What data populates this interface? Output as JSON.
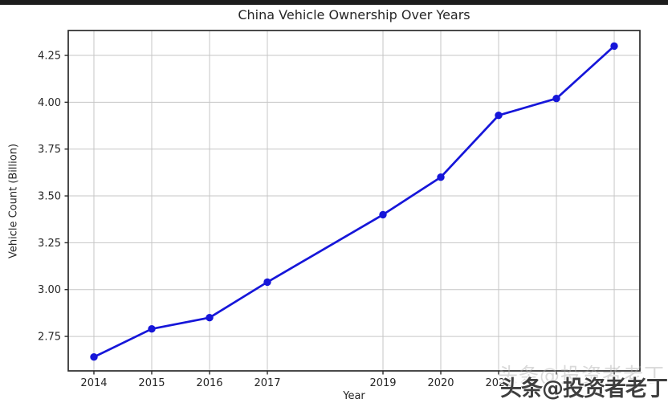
{
  "page": {
    "top_bar_color": "#1d1d1d",
    "background_color": "#ffffff"
  },
  "chart_data": {
    "type": "line",
    "title": "China Vehicle Ownership Over Years",
    "xlabel": "Year",
    "ylabel": "Vehicle Count (Billion)",
    "x": [
      2014,
      2015,
      2016,
      2017,
      2019,
      2020,
      2021,
      2022,
      2023
    ],
    "values": [
      2.64,
      2.79,
      2.85,
      3.04,
      3.4,
      3.6,
      3.93,
      4.02,
      4.3
    ],
    "xlim": [
      2013.556,
      2023.444
    ],
    "ylim": [
      2.566,
      4.383
    ],
    "xticks": [
      2014,
      2015,
      2016,
      2017,
      2019,
      2020,
      2021,
      2022,
      2023
    ],
    "xtick_labels": [
      "2014",
      "2015",
      "2016",
      "2017",
      "2019",
      "2020",
      "2021",
      "",
      ""
    ],
    "yticks": [
      2.75,
      3.0,
      3.25,
      3.5,
      3.75,
      4.0,
      4.25
    ],
    "ytick_labels": [
      "2.75",
      "3.00",
      "3.25",
      "3.50",
      "3.75",
      "4.00",
      "4.25"
    ],
    "grid": true,
    "legend": "none",
    "marker": "circle",
    "line_color": "#1616d9",
    "grid_color": "#c6c6c6",
    "axis_color": "#2b2b2b",
    "tick_label_color": "#262626"
  },
  "watermark": {
    "text": "头条@投资者老丁",
    "color": "#3e3e3e"
  }
}
